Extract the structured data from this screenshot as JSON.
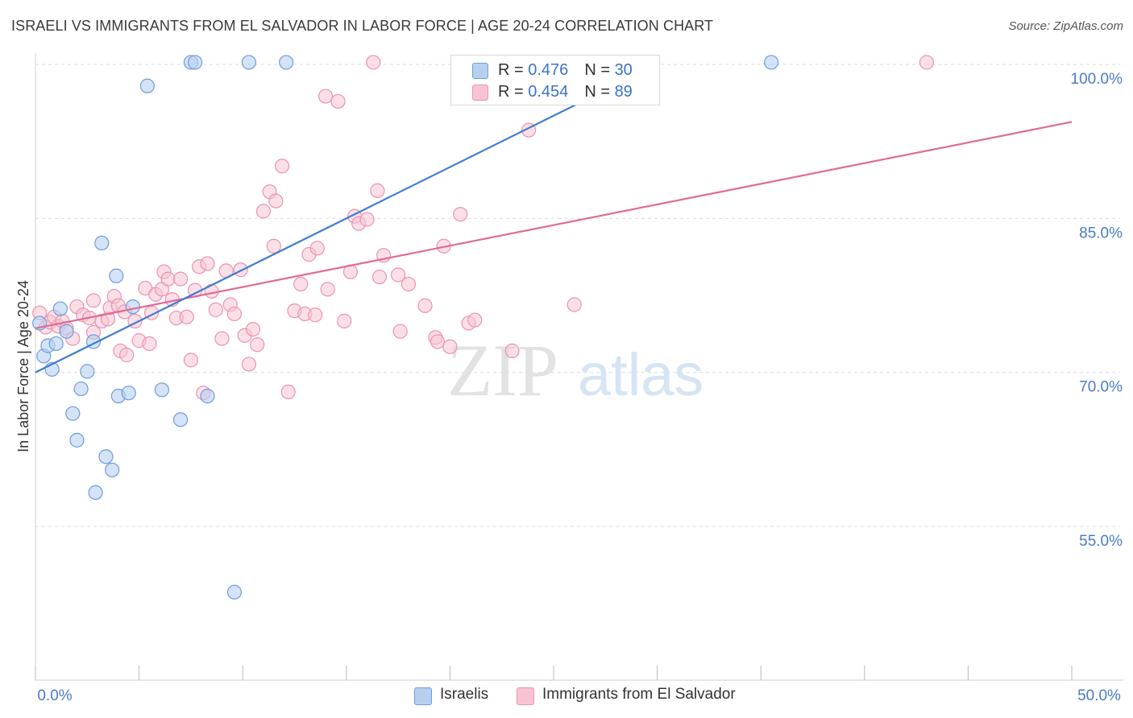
{
  "header": {
    "title": "ISRAELI VS IMMIGRANTS FROM EL SALVADOR IN LABOR FORCE | AGE 20-24 CORRELATION CHART",
    "source": "Source: ZipAtlas.com"
  },
  "legend": {
    "israelis": {
      "r_label": "R = ",
      "r_value": "0.476",
      "n_label": "N = ",
      "n_value": "30"
    },
    "salvador": {
      "r_label": "R = ",
      "r_value": "0.454",
      "n_label": "N = ",
      "n_value": "89"
    }
  },
  "watermark": {
    "zip": "ZIP",
    "atlas": "atlas"
  },
  "colors": {
    "israelis_fill": "#b8d0f0",
    "israelis_stroke": "#6f9ddd",
    "israelis_line": "#3f7dd1",
    "salvador_fill": "#f8c4d4",
    "salvador_stroke": "#eb93b0",
    "salvador_line": "#e06b96",
    "axis_label": "#4a7cc9",
    "grid": "#dcdcdc"
  },
  "chart_data": {
    "type": "scatter",
    "title": "ISRAELI VS IMMIGRANTS FROM EL SALVADOR IN LABOR FORCE | AGE 20-24 CORRELATION CHART",
    "xlabel": "",
    "ylabel": "In Labor Force | Age 20-24",
    "xlim": [
      0,
      50
    ],
    "ylim": [
      41,
      102.5
    ],
    "x_tick_labels": [
      "0.0%",
      "50.0%"
    ],
    "y_ticks": [
      100,
      85,
      70,
      55
    ],
    "y_tick_labels": [
      "100.0%",
      "85.0%",
      "70.0%",
      "55.0%"
    ],
    "series": [
      {
        "name": "Israelis",
        "r": 0.476,
        "n": 30,
        "trend": {
          "x": [
            0,
            30
          ],
          "y": [
            70.0,
            100.0
          ]
        },
        "points": [
          [
            0.2,
            74.8
          ],
          [
            0.4,
            71.6
          ],
          [
            0.6,
            72.6
          ],
          [
            0.8,
            70.3
          ],
          [
            1.0,
            72.8
          ],
          [
            1.2,
            76.2
          ],
          [
            1.5,
            74.0
          ],
          [
            1.8,
            66.0
          ],
          [
            2.0,
            63.4
          ],
          [
            2.2,
            68.4
          ],
          [
            2.5,
            70.1
          ],
          [
            2.8,
            73.0
          ],
          [
            2.9,
            58.3
          ],
          [
            3.2,
            82.6
          ],
          [
            3.4,
            61.8
          ],
          [
            3.7,
            60.5
          ],
          [
            3.9,
            79.4
          ],
          [
            4.0,
            67.7
          ],
          [
            4.5,
            68.0
          ],
          [
            4.7,
            76.4
          ],
          [
            5.4,
            97.9
          ],
          [
            6.1,
            68.3
          ],
          [
            7.0,
            65.4
          ],
          [
            7.5,
            100.2
          ],
          [
            7.7,
            100.2
          ],
          [
            8.3,
            67.7
          ],
          [
            9.6,
            48.6
          ],
          [
            10.3,
            100.2
          ],
          [
            12.1,
            100.2
          ],
          [
            35.5,
            100.2
          ]
        ]
      },
      {
        "name": "Immigrants from El Salvador",
        "r": 0.454,
        "n": 89,
        "trend": {
          "x": [
            0,
            50
          ],
          "y": [
            74.3,
            94.4
          ]
        },
        "points": [
          [
            0.2,
            75.8
          ],
          [
            0.5,
            74.4
          ],
          [
            0.7,
            74.9
          ],
          [
            0.9,
            75.4
          ],
          [
            1.1,
            74.5
          ],
          [
            1.3,
            75.0
          ],
          [
            1.5,
            74.3
          ],
          [
            1.8,
            73.3
          ],
          [
            2.0,
            76.4
          ],
          [
            2.3,
            75.6
          ],
          [
            2.6,
            75.3
          ],
          [
            2.8,
            73.9
          ],
          [
            2.8,
            77.0
          ],
          [
            3.2,
            75.0
          ],
          [
            3.5,
            75.2
          ],
          [
            3.6,
            76.3
          ],
          [
            3.8,
            77.4
          ],
          [
            4.0,
            76.5
          ],
          [
            4.1,
            72.1
          ],
          [
            4.3,
            75.9
          ],
          [
            4.4,
            71.7
          ],
          [
            4.8,
            75.0
          ],
          [
            5.0,
            73.1
          ],
          [
            5.3,
            78.2
          ],
          [
            5.5,
            72.8
          ],
          [
            5.6,
            75.8
          ],
          [
            5.8,
            77.6
          ],
          [
            6.1,
            78.1
          ],
          [
            6.2,
            79.8
          ],
          [
            6.4,
            79.1
          ],
          [
            6.6,
            77.1
          ],
          [
            6.8,
            75.3
          ],
          [
            7.0,
            79.1
          ],
          [
            7.3,
            75.4
          ],
          [
            7.5,
            71.2
          ],
          [
            7.7,
            78.0
          ],
          [
            7.9,
            80.3
          ],
          [
            8.1,
            68.0
          ],
          [
            8.3,
            80.6
          ],
          [
            8.5,
            77.9
          ],
          [
            8.7,
            76.1
          ],
          [
            9.0,
            73.3
          ],
          [
            9.2,
            79.9
          ],
          [
            9.4,
            76.6
          ],
          [
            9.6,
            75.7
          ],
          [
            9.9,
            80.0
          ],
          [
            10.1,
            73.6
          ],
          [
            10.3,
            70.8
          ],
          [
            10.5,
            74.2
          ],
          [
            10.7,
            72.7
          ],
          [
            11.0,
            85.7
          ],
          [
            11.3,
            87.6
          ],
          [
            11.5,
            82.3
          ],
          [
            11.6,
            86.7
          ],
          [
            11.9,
            90.1
          ],
          [
            12.2,
            68.1
          ],
          [
            12.5,
            76.0
          ],
          [
            12.8,
            78.6
          ],
          [
            13.0,
            75.7
          ],
          [
            13.2,
            81.5
          ],
          [
            13.5,
            75.6
          ],
          [
            13.6,
            82.1
          ],
          [
            14.0,
            96.9
          ],
          [
            14.1,
            78.1
          ],
          [
            14.6,
            96.4
          ],
          [
            14.9,
            75.0
          ],
          [
            15.2,
            79.8
          ],
          [
            15.4,
            85.2
          ],
          [
            15.6,
            84.5
          ],
          [
            16.0,
            84.9
          ],
          [
            16.3,
            100.2
          ],
          [
            16.5,
            87.7
          ],
          [
            16.6,
            79.3
          ],
          [
            16.8,
            81.4
          ],
          [
            17.5,
            79.5
          ],
          [
            17.6,
            74.0
          ],
          [
            18.0,
            78.6
          ],
          [
            18.8,
            76.5
          ],
          [
            19.3,
            73.4
          ],
          [
            19.4,
            73.0
          ],
          [
            19.7,
            82.3
          ],
          [
            20.0,
            72.5
          ],
          [
            20.5,
            85.4
          ],
          [
            20.9,
            74.8
          ],
          [
            21.2,
            75.1
          ],
          [
            23.0,
            72.1
          ],
          [
            23.8,
            93.6
          ],
          [
            26.0,
            76.6
          ],
          [
            43.0,
            100.2
          ]
        ]
      }
    ]
  },
  "bottom_legend": {
    "israelis_label": "Israelis",
    "salvador_label": "Immigrants from El Salvador"
  }
}
